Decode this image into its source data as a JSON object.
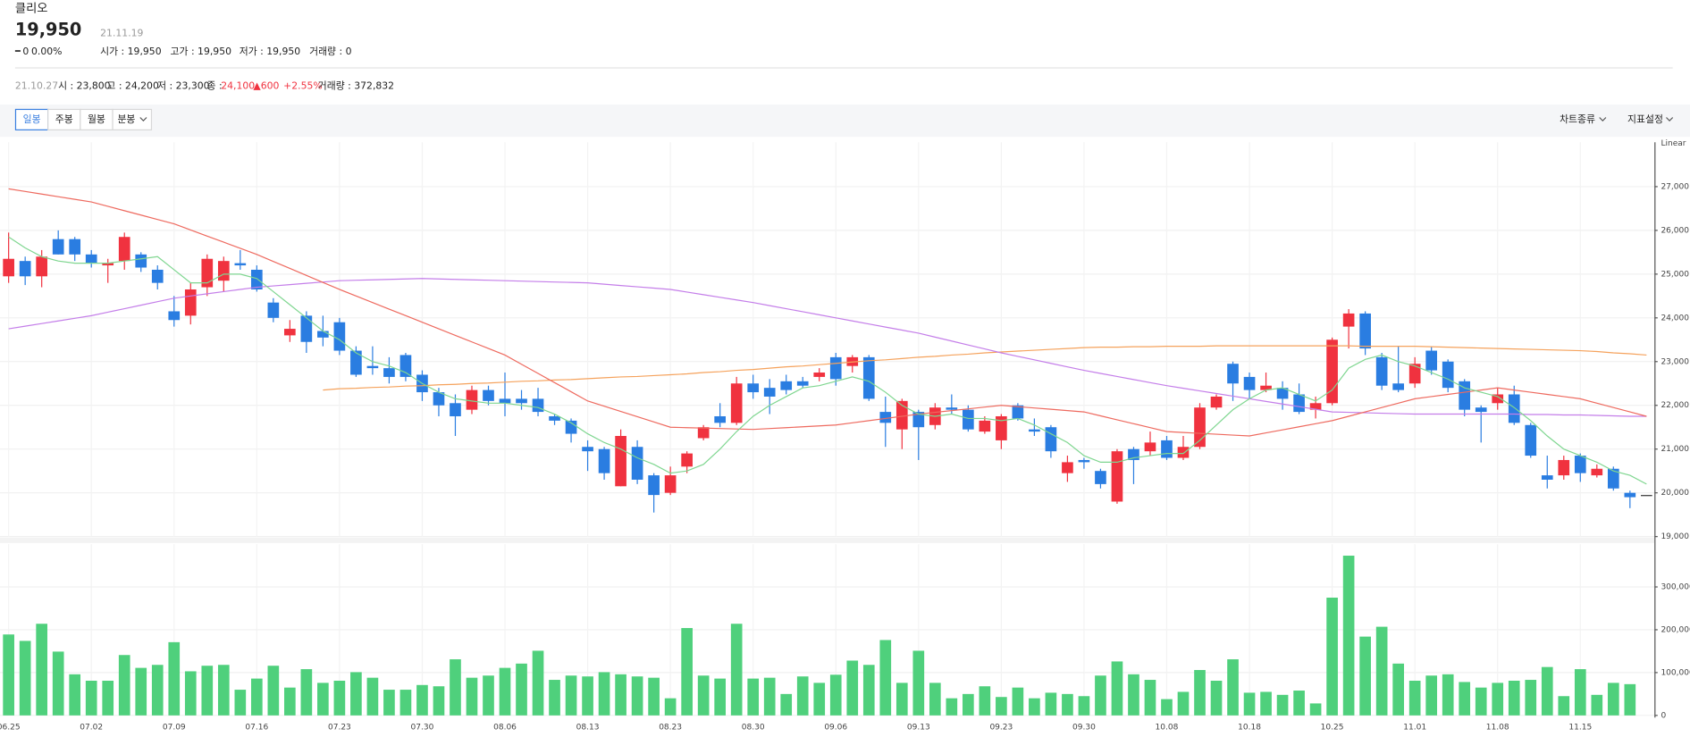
{
  "header": {
    "name": "클리오",
    "price": "19,950",
    "date": "21.11.19",
    "change": "0",
    "change_pct": "0.00%",
    "stats": [
      "시가 : 19,950",
      "고가 : 19,950",
      "저가 : 19,950",
      "거래량 : 0"
    ]
  },
  "info_bar": {
    "date": "21.10.27",
    "open": "시 : 23,800",
    "high": "고 : 24,200",
    "low": "저 : 23,300",
    "close_label": "종 :",
    "close": "24,100",
    "change": "▲600",
    "change_pct": "+2.55%",
    "volume": "거래량 : 372,832"
  },
  "toolbar": {
    "periods": [
      "일봉",
      "주봉",
      "월봉",
      "분봉"
    ],
    "menus": [
      "차트종류",
      "지표설정"
    ]
  },
  "chart_data": [
    {
      "type": "candlestick",
      "scale_label": "Linear",
      "up_color": "#f0323f",
      "down_color": "#2a7de1",
      "categories": [
        "06.25",
        null,
        null,
        null,
        null,
        "07.02",
        null,
        null,
        null,
        null,
        "07.09",
        null,
        null,
        null,
        null,
        "07.16",
        null,
        null,
        null,
        null,
        "07.23",
        null,
        null,
        null,
        null,
        "07.30",
        null,
        null,
        null,
        null,
        "08.06",
        null,
        null,
        null,
        null,
        "08.13",
        null,
        null,
        null,
        null,
        "08.23",
        null,
        null,
        null,
        null,
        "08.30",
        null,
        null,
        null,
        null,
        "09.06",
        null,
        null,
        null,
        null,
        "09.13",
        null,
        null,
        null,
        null,
        "09.23",
        null,
        null,
        null,
        null,
        "09.30",
        null,
        null,
        null,
        null,
        "10.08",
        null,
        null,
        null,
        null,
        "10.18",
        null,
        null,
        null,
        null,
        "10.25",
        null,
        null,
        null,
        null,
        "11.01",
        null,
        null,
        null,
        null,
        "11.08",
        null,
        null,
        null,
        null,
        "11.15",
        null,
        null,
        null,
        null
      ],
      "open": [
        24950,
        25300,
        24950,
        25800,
        25800,
        25450,
        25200,
        25300,
        25450,
        25100,
        24150,
        24050,
        24700,
        24850,
        25250,
        25100,
        24350,
        23600,
        24050,
        23700,
        23900,
        23250,
        22900,
        22850,
        23150,
        22700,
        22300,
        22050,
        21900,
        22350,
        22150,
        22150,
        22150,
        21750,
        21650,
        21050,
        21000,
        20150,
        21050,
        20400,
        20000,
        20600,
        21250,
        21750,
        21600,
        22500,
        22400,
        22550,
        22550,
        22650,
        23100,
        22900,
        23100,
        21850,
        21450,
        21850,
        21550,
        21950,
        21900,
        21400,
        21200,
        22000,
        21450,
        21500,
        20450,
        20750,
        20500,
        19800,
        21000,
        20950,
        21200,
        20800,
        21050,
        21950,
        22950,
        22650,
        22350,
        22400,
        22250,
        21900,
        22050,
        23800,
        24100,
        23100,
        22500,
        22500,
        23250,
        23000,
        22550,
        21950,
        22050,
        22250,
        21550,
        20400,
        20400,
        20850,
        20400,
        20550,
        20000,
        19950
      ],
      "high": [
        25950,
        25400,
        25550,
        26000,
        25850,
        25550,
        25350,
        25950,
        25500,
        25200,
        24500,
        24800,
        25450,
        25400,
        25550,
        25200,
        24450,
        23950,
        24150,
        24050,
        24000,
        23350,
        23350,
        23100,
        23200,
        22800,
        22400,
        22250,
        22450,
        22450,
        22750,
        22350,
        22400,
        21800,
        21700,
        21200,
        21050,
        21450,
        21200,
        20450,
        20600,
        20950,
        21550,
        22050,
        22650,
        22700,
        22600,
        22700,
        22650,
        22850,
        23200,
        23150,
        23150,
        22200,
        22150,
        21900,
        22050,
        22250,
        22000,
        21750,
        21800,
        22050,
        21700,
        21550,
        20850,
        20800,
        20550,
        21000,
        21050,
        21400,
        21300,
        21300,
        22050,
        22250,
        23000,
        22750,
        22750,
        22550,
        22500,
        22200,
        23550,
        24200,
        24150,
        23200,
        23350,
        23100,
        23350,
        23050,
        22600,
        22000,
        22400,
        22450,
        21600,
        20850,
        20850,
        20900,
        20650,
        20600,
        20050,
        19950
      ],
      "low": [
        24800,
        24750,
        24700,
        25450,
        25300,
        25150,
        24800,
        25100,
        25050,
        24650,
        23800,
        23850,
        24500,
        24600,
        25100,
        24600,
        23900,
        23450,
        23200,
        23350,
        23150,
        22650,
        22700,
        22500,
        22550,
        22100,
        21750,
        21300,
        21800,
        22000,
        21750,
        21900,
        21750,
        21550,
        21150,
        20500,
        20300,
        20150,
        20200,
        19550,
        19950,
        20450,
        21200,
        21500,
        21550,
        22150,
        21800,
        22250,
        22400,
        22550,
        22450,
        22750,
        22100,
        21050,
        21000,
        20750,
        21450,
        21800,
        21400,
        21350,
        21000,
        21650,
        21300,
        20800,
        20250,
        20550,
        20100,
        19750,
        20200,
        20850,
        20750,
        20750,
        21000,
        21900,
        22100,
        22150,
        22300,
        21900,
        21800,
        21700,
        22000,
        23300,
        23150,
        22350,
        22300,
        22400,
        22700,
        22300,
        21750,
        21150,
        21900,
        21550,
        20800,
        20100,
        20300,
        20250,
        20350,
        20050,
        19650,
        19950
      ],
      "close": [
        25350,
        24950,
        25400,
        25450,
        25450,
        25250,
        25250,
        25850,
        25150,
        24800,
        23950,
        24650,
        25350,
        25300,
        25200,
        24650,
        24000,
        23750,
        23450,
        23550,
        23250,
        22700,
        22850,
        22650,
        22650,
        22300,
        22000,
        21750,
        22350,
        22100,
        22050,
        22050,
        21850,
        21650,
        21350,
        20950,
        20450,
        21300,
        20300,
        19950,
        20400,
        20900,
        21500,
        21600,
        22500,
        22300,
        22200,
        22350,
        22450,
        22750,
        22600,
        23100,
        22150,
        21600,
        22100,
        21500,
        21950,
        21900,
        21450,
        21650,
        21750,
        21700,
        21400,
        20950,
        20700,
        20700,
        20200,
        20950,
        20750,
        21150,
        20800,
        21050,
        21950,
        22200,
        22500,
        22350,
        22450,
        22150,
        21850,
        22050,
        23500,
        24100,
        23300,
        22450,
        22350,
        22950,
        22800,
        22400,
        21900,
        21850,
        22250,
        21600,
        20850,
        20300,
        20750,
        20450,
        20550,
        20100,
        19900,
        19950
      ],
      "series": [
        {
          "type": "line",
          "color": "#f5a25c",
          "values": [
            null,
            null,
            null,
            null,
            null,
            null,
            null,
            null,
            null,
            null,
            null,
            null,
            null,
            null,
            null,
            null,
            null,
            null,
            null,
            22350,
            22380,
            22390,
            22410,
            22420,
            22440,
            22450,
            22470,
            22480,
            22500,
            22510,
            22530,
            22550,
            22560,
            22580,
            22590,
            22610,
            22630,
            22650,
            22660,
            22680,
            22700,
            22720,
            22750,
            22770,
            22800,
            22820,
            22850,
            22880,
            22900,
            22930,
            22960,
            22990,
            23020,
            23040,
            23070,
            23100,
            23120,
            23150,
            23170,
            23200,
            23220,
            23240,
            23260,
            23280,
            23300,
            23320,
            23330,
            23330,
            23340,
            23340,
            23350,
            23350,
            23350,
            23360,
            23360,
            23360,
            23360,
            23360,
            23360,
            23360,
            23360,
            23360,
            23350,
            23350,
            23350,
            23350,
            23340,
            23330,
            23320,
            23310,
            23300,
            23290,
            23280,
            23270,
            23260,
            23250,
            23230,
            23200,
            23180,
            23150
          ]
        },
        {
          "type": "line",
          "color": "#c47ee9",
          "values": [
            23750,
            23810,
            23870,
            23930,
            23990,
            24050,
            24130,
            24210,
            24290,
            24370,
            24450,
            24500,
            24550,
            24600,
            24650,
            24700,
            24730,
            24760,
            24790,
            24820,
            24850,
            24860,
            24870,
            24880,
            24890,
            24900,
            24890,
            24880,
            24870,
            24860,
            24850,
            24840,
            24830,
            24820,
            24810,
            24800,
            24770,
            24740,
            24710,
            24680,
            24650,
            24590,
            24530,
            24470,
            24410,
            24350,
            24280,
            24210,
            24140,
            24070,
            24000,
            23930,
            23860,
            23790,
            23720,
            23650,
            23560,
            23470,
            23380,
            23290,
            23200,
            23120,
            23040,
            22960,
            22880,
            22800,
            22730,
            22660,
            22590,
            22520,
            22450,
            22390,
            22330,
            22270,
            22210,
            22150,
            22090,
            22030,
            21970,
            21910,
            21850,
            21840,
            21830,
            21820,
            21810,
            21800,
            21800,
            21800,
            21800,
            21800,
            21800,
            21800,
            21790,
            21790,
            21780,
            21780,
            21770,
            21760,
            21750,
            21750
          ]
        },
        {
          "type": "line",
          "color": "#ee6a5f",
          "values": [
            26950,
            26890,
            26830,
            26770,
            26710,
            26650,
            26550,
            26450,
            26350,
            26250,
            26150,
            26010,
            25870,
            25730,
            25590,
            25450,
            25290,
            25130,
            24970,
            24810,
            24650,
            24500,
            24350,
            24200,
            24050,
            23900,
            23750,
            23600,
            23450,
            23300,
            23150,
            22940,
            22730,
            22520,
            22310,
            22100,
            21980,
            21860,
            21740,
            21620,
            21500,
            21490,
            21480,
            21470,
            21460,
            21450,
            21470,
            21490,
            21510,
            21530,
            21550,
            21600,
            21650,
            21700,
            21750,
            21800,
            21840,
            21880,
            21920,
            21960,
            22000,
            21970,
            21940,
            21910,
            21880,
            21850,
            21760,
            21670,
            21580,
            21490,
            21400,
            21380,
            21360,
            21340,
            21320,
            21300,
            21370,
            21440,
            21510,
            21580,
            21650,
            21750,
            21850,
            21950,
            22050,
            22150,
            22200,
            22250,
            22300,
            22350,
            22400,
            22350,
            22300,
            22250,
            22200,
            22150,
            22050,
            21950,
            21850,
            21750
          ]
        },
        {
          "type": "line",
          "color": "#7fd690",
          "values": [
            25850,
            25600,
            25400,
            25300,
            25250,
            25250,
            25250,
            25300,
            25350,
            25400,
            25100,
            24800,
            24800,
            25000,
            25000,
            24900,
            24600,
            24300,
            24000,
            23700,
            23500,
            23200,
            23000,
            22900,
            22750,
            22500,
            22300,
            22150,
            22100,
            22050,
            22050,
            22000,
            21950,
            21800,
            21600,
            21350,
            21150,
            21000,
            20800,
            20650,
            20450,
            20500,
            20650,
            21000,
            21400,
            21750,
            22000,
            22200,
            22400,
            22450,
            22550,
            22650,
            22550,
            22300,
            22000,
            21800,
            21750,
            21800,
            21700,
            21700,
            21650,
            21700,
            21550,
            21350,
            21150,
            20850,
            20700,
            20700,
            20800,
            20850,
            20900,
            20900,
            21200,
            21550,
            21900,
            22150,
            22350,
            22400,
            22250,
            22100,
            22350,
            22850,
            23050,
            23150,
            23000,
            22900,
            22750,
            22600,
            22400,
            22300,
            22200,
            21950,
            21650,
            21300,
            21000,
            20850,
            20700,
            20500,
            20400,
            20200
          ]
        }
      ],
      "ylim": [
        19000,
        28000
      ],
      "yticks": [
        {
          "value": 19000,
          "label": "19,000"
        },
        {
          "value": 20000,
          "label": "20,000"
        },
        {
          "value": 21000,
          "label": "21,000"
        },
        {
          "value": 22000,
          "label": "22,000"
        },
        {
          "value": 23000,
          "label": "23,000"
        },
        {
          "value": 24000,
          "label": "24,000"
        },
        {
          "value": 25000,
          "label": "25,000"
        },
        {
          "value": 26000,
          "label": "26,000"
        },
        {
          "value": 27000,
          "label": "27,000"
        }
      ],
      "grid": true
    },
    {
      "type": "bar",
      "color": "#4fd07c",
      "values": [
        189000,
        174000,
        214000,
        149000,
        96000,
        81000,
        81000,
        141000,
        111000,
        118000,
        171000,
        103000,
        116000,
        118000,
        60000,
        86000,
        116000,
        65000,
        108000,
        76000,
        81000,
        101000,
        88000,
        60000,
        60000,
        71000,
        68000,
        131000,
        88000,
        93000,
        111000,
        121000,
        151000,
        83000,
        93000,
        91000,
        101000,
        96000,
        91000,
        88000,
        40000,
        204000,
        93000,
        86000,
        214000,
        86000,
        88000,
        50000,
        91000,
        76000,
        95000,
        128000,
        118000,
        176000,
        76000,
        151000,
        76000,
        40000,
        50000,
        68000,
        43000,
        65000,
        40000,
        53000,
        50000,
        45000,
        93000,
        126000,
        96000,
        83000,
        38000,
        55000,
        106000,
        81000,
        131000,
        53000,
        55000,
        48000,
        58000,
        28000,
        275000,
        373000,
        184000,
        207000,
        121000,
        81000,
        93000,
        96000,
        78000,
        65000,
        76000,
        81000,
        83000,
        113000,
        45000,
        108000,
        48000,
        76000,
        73000,
        0
      ],
      "ylim": [
        0,
        400000
      ],
      "yticks": [
        0,
        {
          "value": 100000,
          "label": "100,000"
        },
        {
          "value": 200000,
          "label": "200,000"
        },
        {
          "value": 300000,
          "label": "300,000"
        }
      ],
      "grid": true
    }
  ]
}
